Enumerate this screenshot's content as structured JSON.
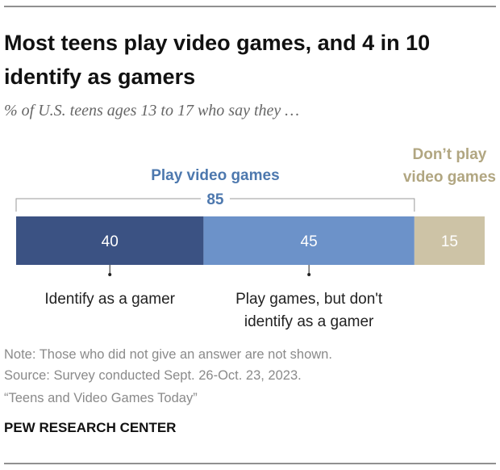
{
  "chart_data": {
    "type": "stacked_bar",
    "title": "Most teens play video games, and 4 in 10 identify as gamers",
    "subtitle": "% of U.S. teens ages 13 to 17 who say they …",
    "xlim": [
      0,
      100
    ],
    "series": [
      {
        "name": "Identify as a gamer",
        "color": "#3b5283",
        "values": [
          40
        ]
      },
      {
        "name": "Play games, but don't identify as a gamer",
        "color": "#6c92c9",
        "values": [
          45
        ]
      },
      {
        "name": "Don’t play video games",
        "color": "#cdc3a6",
        "values": [
          15
        ]
      }
    ],
    "group": {
      "label": "Play video games",
      "value": 85,
      "color": "#4d78ae"
    },
    "note": "Note: Those who did not give an answer are not shown.",
    "source": "Source: Survey conducted Sept. 26-Oct. 23, 2023.",
    "report": "“Teens and Video Games Today”",
    "org": "PEW RESEARCH CENTER"
  }
}
